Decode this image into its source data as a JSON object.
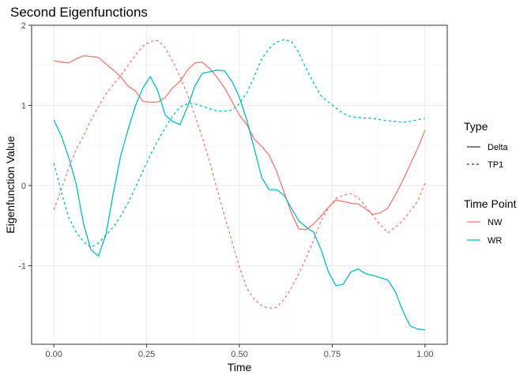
{
  "chart_data": {
    "type": "line",
    "title": "Second Eigenfunctions",
    "xlabel": "Time",
    "ylabel": "Eigenfunction Value",
    "xlim": [
      -0.06,
      1.06
    ],
    "ylim": [
      -1.98,
      2.0
    ],
    "x_ticks": [
      0.0,
      0.25,
      0.5,
      0.75,
      1.0
    ],
    "x_tick_labels": [
      "0.00",
      "0.25",
      "0.50",
      "0.75",
      "1.00"
    ],
    "y_ticks": [
      -1,
      0,
      1,
      2
    ],
    "y_tick_labels": [
      "-1",
      "0",
      "1",
      "2"
    ],
    "grid": true,
    "legend_position": "right",
    "legend": {
      "type_title": "Type",
      "type_entries": [
        {
          "label": "Delta",
          "linetype": "solid"
        },
        {
          "label": "TP1",
          "linetype": "dashed"
        }
      ],
      "timepoint_title": "Time Point",
      "timepoint_entries": [
        {
          "label": "NW",
          "color": "#F8766D"
        },
        {
          "label": "WR",
          "color": "#00BFC4"
        }
      ]
    },
    "series": [
      {
        "name": "NW",
        "type_label": "Delta",
        "color": "#F8766D",
        "dash": false,
        "x": [
          0.0,
          0.02,
          0.04,
          0.06,
          0.08,
          0.1,
          0.12,
          0.14,
          0.16,
          0.18,
          0.2,
          0.22,
          0.24,
          0.26,
          0.28,
          0.3,
          0.32,
          0.34,
          0.36,
          0.38,
          0.4,
          0.42,
          0.44,
          0.46,
          0.48,
          0.5,
          0.52,
          0.54,
          0.56,
          0.58,
          0.6,
          0.62,
          0.64,
          0.66,
          0.68,
          0.7,
          0.72,
          0.74,
          0.76,
          0.78,
          0.8,
          0.82,
          0.84,
          0.86,
          0.88,
          0.9,
          0.92,
          0.94,
          0.96,
          0.98,
          1.0
        ],
        "y": [
          1.56,
          1.54,
          1.53,
          1.58,
          1.62,
          1.61,
          1.6,
          1.52,
          1.44,
          1.36,
          1.24,
          1.18,
          1.05,
          1.04,
          1.04,
          1.1,
          1.22,
          1.3,
          1.44,
          1.53,
          1.54,
          1.46,
          1.35,
          1.22,
          1.05,
          0.88,
          0.76,
          0.58,
          0.49,
          0.38,
          0.18,
          -0.08,
          -0.34,
          -0.54,
          -0.55,
          -0.48,
          -0.38,
          -0.27,
          -0.18,
          -0.2,
          -0.22,
          -0.23,
          -0.29,
          -0.36,
          -0.34,
          -0.28,
          -0.12,
          0.06,
          0.26,
          0.46,
          0.69
        ]
      },
      {
        "name": "NW",
        "type_label": "TP1",
        "color": "#F8766D",
        "dash": true,
        "x": [
          0.0,
          0.02,
          0.04,
          0.06,
          0.08,
          0.1,
          0.12,
          0.14,
          0.16,
          0.18,
          0.2,
          0.22,
          0.24,
          0.26,
          0.28,
          0.3,
          0.32,
          0.34,
          0.36,
          0.38,
          0.4,
          0.42,
          0.44,
          0.46,
          0.48,
          0.5,
          0.52,
          0.54,
          0.56,
          0.58,
          0.6,
          0.62,
          0.64,
          0.66,
          0.68,
          0.7,
          0.72,
          0.74,
          0.76,
          0.78,
          0.8,
          0.82,
          0.84,
          0.86,
          0.88,
          0.9,
          0.92,
          0.94,
          0.96,
          0.98,
          1.0
        ],
        "y": [
          -0.3,
          -0.05,
          0.22,
          0.45,
          0.62,
          0.82,
          0.98,
          1.14,
          1.26,
          1.37,
          1.5,
          1.63,
          1.74,
          1.8,
          1.81,
          1.72,
          1.55,
          1.36,
          1.14,
          0.88,
          0.6,
          0.3,
          -0.05,
          -0.38,
          -0.7,
          -1.02,
          -1.28,
          -1.42,
          -1.5,
          -1.53,
          -1.52,
          -1.42,
          -1.28,
          -1.1,
          -0.9,
          -0.68,
          -0.44,
          -0.28,
          -0.16,
          -0.12,
          -0.1,
          -0.15,
          -0.26,
          -0.38,
          -0.49,
          -0.59,
          -0.52,
          -0.44,
          -0.32,
          -0.2,
          0.03
        ]
      },
      {
        "name": "WR",
        "type_label": "Delta",
        "color": "#00BFC4",
        "dash": false,
        "x": [
          0.0,
          0.02,
          0.04,
          0.06,
          0.08,
          0.1,
          0.12,
          0.14,
          0.16,
          0.18,
          0.2,
          0.22,
          0.24,
          0.26,
          0.28,
          0.3,
          0.32,
          0.34,
          0.36,
          0.38,
          0.4,
          0.42,
          0.44,
          0.46,
          0.48,
          0.5,
          0.52,
          0.54,
          0.56,
          0.58,
          0.6,
          0.62,
          0.64,
          0.66,
          0.68,
          0.7,
          0.72,
          0.74,
          0.76,
          0.78,
          0.8,
          0.82,
          0.84,
          0.86,
          0.88,
          0.9,
          0.92,
          0.94,
          0.96,
          0.98,
          1.0
        ],
        "y": [
          0.82,
          0.62,
          0.35,
          0.02,
          -0.48,
          -0.8,
          -0.88,
          -0.62,
          -0.1,
          0.37,
          0.7,
          1.0,
          1.22,
          1.36,
          1.18,
          0.88,
          0.8,
          0.76,
          0.98,
          1.24,
          1.4,
          1.42,
          1.44,
          1.43,
          1.3,
          1.1,
          0.82,
          0.46,
          0.1,
          -0.05,
          -0.05,
          -0.12,
          -0.28,
          -0.44,
          -0.52,
          -0.58,
          -0.8,
          -1.08,
          -1.25,
          -1.23,
          -1.08,
          -1.04,
          -1.1,
          -1.12,
          -1.15,
          -1.18,
          -1.32,
          -1.56,
          -1.75,
          -1.79,
          -1.8
        ]
      },
      {
        "name": "WR",
        "type_label": "TP1",
        "color": "#00BFC4",
        "dash": true,
        "x": [
          0.0,
          0.02,
          0.04,
          0.06,
          0.08,
          0.1,
          0.12,
          0.14,
          0.16,
          0.18,
          0.2,
          0.22,
          0.24,
          0.26,
          0.28,
          0.3,
          0.32,
          0.34,
          0.36,
          0.38,
          0.4,
          0.42,
          0.44,
          0.46,
          0.48,
          0.5,
          0.52,
          0.54,
          0.56,
          0.58,
          0.6,
          0.62,
          0.64,
          0.66,
          0.68,
          0.7,
          0.72,
          0.74,
          0.76,
          0.78,
          0.8,
          0.82,
          0.84,
          0.86,
          0.88,
          0.9,
          0.92,
          0.94,
          0.96,
          0.98,
          1.0
        ],
        "y": [
          0.28,
          -0.08,
          -0.4,
          -0.58,
          -0.7,
          -0.77,
          -0.72,
          -0.62,
          -0.52,
          -0.38,
          -0.22,
          -0.02,
          0.18,
          0.38,
          0.56,
          0.72,
          0.87,
          0.98,
          1.02,
          1.02,
          0.99,
          0.96,
          0.93,
          0.93,
          0.94,
          1.02,
          1.16,
          1.36,
          1.58,
          1.71,
          1.79,
          1.82,
          1.8,
          1.66,
          1.46,
          1.28,
          1.12,
          1.04,
          0.97,
          0.9,
          0.86,
          0.85,
          0.84,
          0.84,
          0.82,
          0.81,
          0.8,
          0.79,
          0.8,
          0.82,
          0.84
        ]
      }
    ]
  }
}
